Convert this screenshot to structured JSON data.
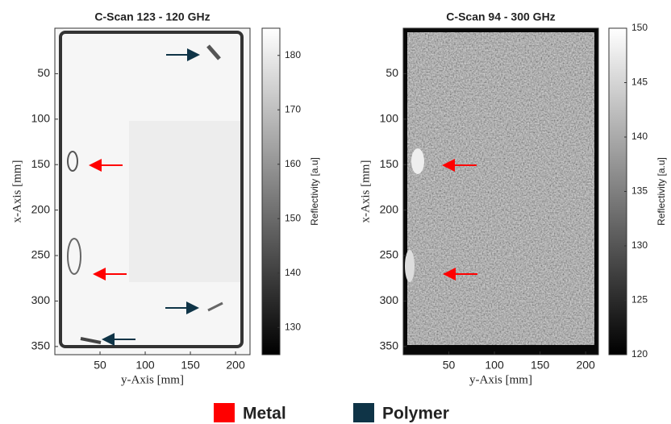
{
  "chart_data": [
    {
      "type": "image",
      "title": "C-Scan 123 - 120 GHz",
      "xlabel": "y-Axis [mm]",
      "ylabel": "x-Axis [mm]",
      "xlim": [
        0,
        216
      ],
      "xticks": [
        50,
        100,
        150,
        200
      ],
      "ylim": [
        0,
        359
      ],
      "yticks": [
        50,
        100,
        150,
        200,
        250,
        300,
        350
      ],
      "colorbar_label": "Reflectivity [a.u]",
      "colorbar_lim": [
        125,
        185
      ],
      "colorbar_ticks": [
        130,
        140,
        150,
        160,
        170,
        180
      ]
    },
    {
      "type": "image",
      "title": "C-Scan 94 - 300 GHz",
      "xlabel": "y-Axis [mm]",
      "ylabel": "x-Axis [mm]",
      "xlim": [
        0,
        214
      ],
      "xticks": [
        50,
        100,
        150,
        200
      ],
      "ylim": [
        0,
        359
      ],
      "yticks": [
        50,
        100,
        150,
        200,
        250,
        300,
        350
      ],
      "colorbar_label": "Reflectivity [a.u]",
      "colorbar_lim": [
        120,
        150
      ],
      "colorbar_ticks": [
        120,
        125,
        130,
        135,
        140,
        145,
        150
      ]
    }
  ],
  "legend": {
    "items": [
      {
        "label": "Metal",
        "color": "#ff0000"
      },
      {
        "label": "Polymer",
        "color": "#0f3447"
      }
    ]
  }
}
